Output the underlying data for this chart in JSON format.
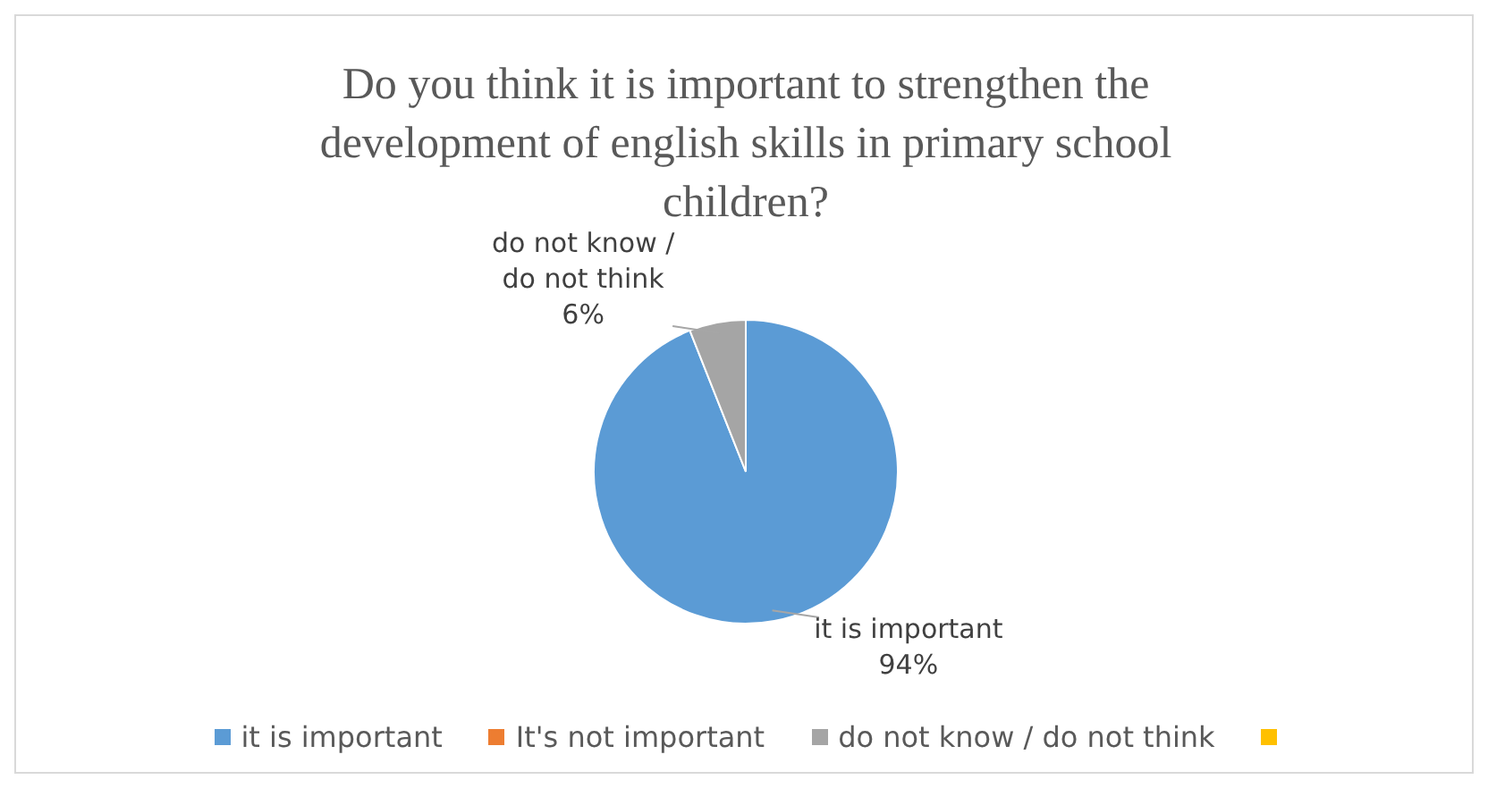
{
  "chart_data": {
    "type": "pie",
    "title": "Do you think it is important to strengthen the development of english skills in primary school children?",
    "categories": [
      "it is important",
      "It's not important",
      "do not know / do not think",
      null
    ],
    "values": [
      94,
      0,
      6,
      0
    ],
    "value_labels": [
      "94%",
      null,
      "6%",
      null
    ],
    "colors": [
      "#5b9bd5",
      "#ed7d31",
      "#a5a5a5",
      "#ffc000"
    ],
    "legend": "bottom"
  }
}
